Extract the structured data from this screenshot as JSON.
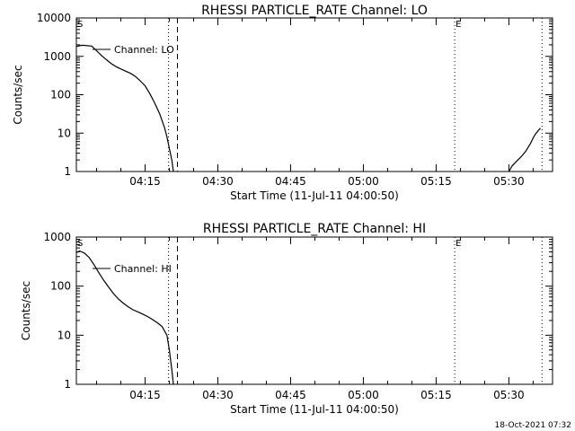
{
  "footer": {
    "timestamp": "18-Oct-2021 07:32"
  },
  "chart_data": [
    {
      "type": "line",
      "title": "RHESSI PARTICLE_RATE Channel: LO",
      "xlabel": "Start Time (11-Jul-11 04:00:50)",
      "ylabel": "Counts/sec",
      "yscale": "log",
      "xlim": [
        "04:00:50",
        "05:39:00"
      ],
      "ylim": [
        1,
        10000
      ],
      "xticks": [
        "04:15",
        "04:30",
        "04:45",
        "05:00",
        "05:15",
        "05:30"
      ],
      "yticks": [
        "1",
        "10",
        "100",
        "1000",
        "10000"
      ],
      "legend": "Channel: LO",
      "legend_position": "top-left",
      "grid": false,
      "markers": {
        "start": "S",
        "end": "E"
      },
      "series": [
        {
          "x": [
            "04:00:50",
            "04:02:00",
            "04:04:00",
            "04:05:00",
            "04:06:00",
            "04:07:00",
            "04:08:00",
            "04:09:00",
            "04:10:00",
            "04:11:00",
            "04:12:00",
            "04:13:00",
            "04:14:00",
            "04:15:00",
            "04:16:00",
            "04:17:00",
            "04:18:00",
            "04:19:00",
            "04:19:30",
            "04:20:00",
            "04:20:30",
            "04:20:50"
          ],
          "values": [
            1800,
            1950,
            1850,
            1400,
            1050,
            820,
            650,
            540,
            470,
            410,
            360,
            300,
            230,
            170,
            105,
            60,
            32,
            14,
            8,
            4,
            2,
            1
          ]
        },
        {
          "x": [
            "05:30:00",
            "05:30:40",
            "05:31:30",
            "05:32:30",
            "05:33:30",
            "05:34:30",
            "05:35:00",
            "05:35:30",
            "05:36:00",
            "05:36:30"
          ],
          "values": [
            1,
            1.4,
            1.8,
            2.4,
            3.4,
            5.5,
            7.5,
            9.5,
            11.5,
            13.5
          ]
        }
      ],
      "vlines": [
        {
          "x": "04:19:50",
          "style": "dotted"
        },
        {
          "x": "04:21:40",
          "style": "dashed"
        },
        {
          "x": "05:18:50",
          "style": "dotted"
        },
        {
          "x": "05:36:50",
          "style": "dotted"
        }
      ]
    },
    {
      "type": "line",
      "title": "RHESSI PARTICLE_RATE Channel: HI",
      "xlabel": "Start Time (11-Jul-11 04:00:50)",
      "ylabel": "Counts/sec",
      "yscale": "log",
      "xlim": [
        "04:00:50",
        "05:39:00"
      ],
      "ylim": [
        1,
        1000
      ],
      "xticks": [
        "04:15",
        "04:30",
        "04:45",
        "05:00",
        "05:15",
        "05:30"
      ],
      "yticks": [
        "1",
        "10",
        "100",
        "1000"
      ],
      "legend": "Channel: HI",
      "legend_position": "top-left",
      "grid": false,
      "markers": {
        "start": "S",
        "end": "E"
      },
      "series": [
        {
          "x": [
            "04:00:50",
            "04:01:30",
            "04:02:30",
            "04:03:30",
            "04:04:30",
            "04:05:30",
            "04:06:30",
            "04:07:30",
            "04:08:30",
            "04:09:30",
            "04:10:30",
            "04:11:30",
            "04:12:30",
            "04:13:30",
            "04:14:30",
            "04:15:30",
            "04:16:30",
            "04:17:30",
            "04:18:30",
            "04:19:30",
            "04:20:00",
            "04:20:30",
            "04:20:50"
          ],
          "values": [
            480,
            520,
            470,
            380,
            270,
            185,
            130,
            95,
            70,
            55,
            45,
            38,
            33,
            30,
            27,
            24,
            21,
            18,
            15,
            10,
            5,
            2,
            1
          ]
        }
      ],
      "vlines": [
        {
          "x": "04:19:50",
          "style": "dotted"
        },
        {
          "x": "04:21:40",
          "style": "dashed"
        },
        {
          "x": "05:18:50",
          "style": "dotted"
        },
        {
          "x": "05:36:50",
          "style": "dotted"
        }
      ]
    }
  ]
}
